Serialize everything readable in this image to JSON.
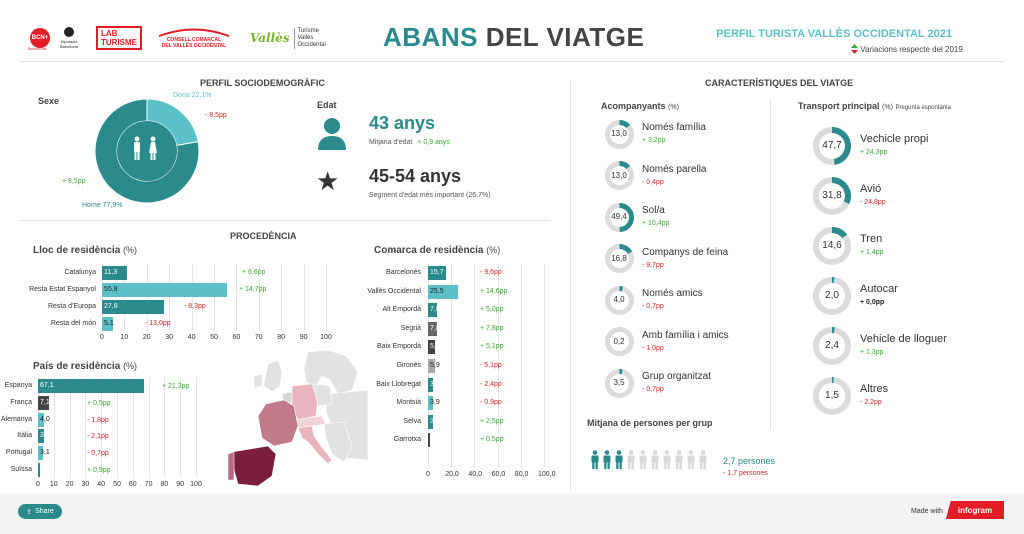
{
  "header": {
    "logo_bcn": "BCN+",
    "logo_bcn_sub": "Barcelona",
    "logo_diputacio": "Diputació Barcelona",
    "logo_lab_1": "LAB",
    "logo_lab_2": "TURISME",
    "logo_consell_1": "CONSELL COMARCAL",
    "logo_consell_2": "DEL VALLÈS OCCIDENTAL",
    "logo_valles_script": "Vallès",
    "logo_valles_1": "Turisme",
    "logo_valles_2": "Vallès",
    "logo_valles_3": "Occidental",
    "title_part1": "ABANS",
    "title_part2": "DEL VIATGE",
    "perfil": "PERFIL TURISTA VALLÈS OCCIDENTAL 2021",
    "variacions": "Variacions respecte del 2019"
  },
  "socio": {
    "title": "PERFIL SOCIODEMOGRÀFIC",
    "sexe_label": "Sexe",
    "dona_label": "Dona 22,1%",
    "dona_delta": "- 8,5pp",
    "home_label": "Home 77,9%",
    "home_delta": "+ 8,5pp",
    "dona_value": 22.1,
    "home_value": 77.9,
    "edat_label": "Edat",
    "edat_value": "43 anys",
    "edat_desc": "Mitjana d'edat",
    "edat_delta": "+ 0,9 anys",
    "segment_value": "45-54 anys",
    "segment_desc": "Segment d'edat més important (26,7%)"
  },
  "procedencia": {
    "title": "PROCEDÈNCIA",
    "lloc": {
      "title": "Lloc de residència",
      "unit": "(%)",
      "rows": [
        {
          "label": "Catalunya",
          "value": 11.3,
          "value_text": "11,3",
          "delta": "+ 6,6pp",
          "dir": "g",
          "color": "#2a8a8c"
        },
        {
          "label": "Resta Estat Espanyol",
          "value": 55.8,
          "value_text": "55,8",
          "delta": "+ 14,7pp",
          "dir": "g",
          "color": "#5bc0c8"
        },
        {
          "label": "Resta d'Europa",
          "value": 27.8,
          "value_text": "27,8",
          "delta": "- 8,3pp",
          "dir": "r",
          "color": "#2a8a8c"
        },
        {
          "label": "Resta del món",
          "value": 5.1,
          "value_text": "5,1",
          "delta": "- 13,0pp",
          "dir": "r",
          "color": "#5bc0c8"
        }
      ],
      "ticks": [
        "0",
        "10",
        "20",
        "30",
        "40",
        "50",
        "60",
        "70",
        "80",
        "90",
        "100"
      ]
    },
    "pais": {
      "title": "País de residència",
      "unit": "(%)",
      "rows": [
        {
          "label": "Espanya",
          "value": 67.1,
          "value_text": "67,1",
          "delta": "+ 21,3pp",
          "dir": "g",
          "color": "#2a8a8c"
        },
        {
          "label": "França",
          "value": 7.1,
          "value_text": "7,1",
          "delta": "+ 0,5pp",
          "dir": "g",
          "color": "#444444"
        },
        {
          "label": "Alemanya",
          "value": 4.0,
          "value_text": "4,0",
          "delta": "- 1,8pp",
          "dir": "r",
          "color": "#5bc0c8"
        },
        {
          "label": "Itàlia",
          "value": 3.5,
          "value_text": "3,5",
          "delta": "- 2,1pp",
          "dir": "r",
          "color": "#2a8a8c"
        },
        {
          "label": "Portugal",
          "value": 3.1,
          "value_text": "3,1",
          "delta": "- 0,7pp",
          "dir": "r",
          "color": "#5bc0c8"
        },
        {
          "label": "Suïssa",
          "value": 1.5,
          "value_text": "1,5",
          "delta": "+ 0,9pp",
          "dir": "g",
          "color": "#2a8a8c"
        }
      ],
      "ticks": [
        "0",
        "10",
        "20",
        "30",
        "40",
        "50",
        "60",
        "70",
        "80",
        "90",
        "100"
      ]
    },
    "comarca": {
      "title": "Comarca de residència",
      "unit": "(%)",
      "rows": [
        {
          "label": "Barcelonès",
          "value": 15.7,
          "value_text": "15,7",
          "delta": "- 9,6pp",
          "dir": "r",
          "color": "#2a8a8c"
        },
        {
          "label": "Vallès Occidental",
          "value": 25.5,
          "value_text": "25,5",
          "delta": "+ 14,6pp",
          "dir": "g",
          "color": "#5bc0c8"
        },
        {
          "label": "Alt Empordà",
          "value": 7.8,
          "value_text": "7,8",
          "delta": "+ 5,0pp",
          "dir": "g",
          "color": "#2a8a8c"
        },
        {
          "label": "Segrià",
          "value": 7.8,
          "value_text": "7,8",
          "delta": "+ 7,8pp",
          "dir": "g",
          "color": "#666666"
        },
        {
          "label": "Baix Empordà",
          "value": 5.9,
          "value_text": "5,9",
          "delta": "+ 5,1pp",
          "dir": "g",
          "color": "#444444"
        },
        {
          "label": "Gironès",
          "value": 5.9,
          "value_text": "5,9",
          "delta": "- 5,1pp",
          "dir": "r",
          "color": "#aaaaaa"
        },
        {
          "label": "Baix Llobregat",
          "value": 3.9,
          "value_text": "3,9",
          "delta": "- 2,4pp",
          "dir": "r",
          "color": "#2a8a8c"
        },
        {
          "label": "Montsià",
          "value": 3.9,
          "value_text": "3,9",
          "delta": "- 0,9pp",
          "dir": "r",
          "color": "#5bc0c8"
        },
        {
          "label": "Selva",
          "value": 3.9,
          "value_text": "3,9",
          "delta": "+ 2,5pp",
          "dir": "g",
          "color": "#2a8a8c"
        },
        {
          "label": "Garrotxa",
          "value": 2.0,
          "value_text": "2",
          "delta": "+ 0,5pp",
          "dir": "g",
          "color": "#444444"
        }
      ],
      "ticks": [
        "0",
        "20,0",
        "40,0",
        "60,0",
        "80,0",
        "100,0"
      ]
    }
  },
  "viatge": {
    "title": "CARACTERÍSTIQUES DEL VIATGE",
    "acomp": {
      "title": "Acompanyants",
      "unit": "(%)",
      "items": [
        {
          "label": "Només família",
          "value": 13.0,
          "value_text": "13,0",
          "delta": "+ 3,2pp",
          "dir": "g"
        },
        {
          "label": "Només parella",
          "value": 13.0,
          "value_text": "13,0",
          "delta": "- 0,4pp",
          "dir": "r"
        },
        {
          "label": "Sol/a",
          "value": 49.4,
          "value_text": "49,4",
          "delta": "+ 10,4pp",
          "dir": "g"
        },
        {
          "label": "Companys de feina",
          "value": 16.8,
          "value_text": "16,8",
          "delta": "- 9,7pp",
          "dir": "r"
        },
        {
          "label": "Només amics",
          "value": 4.0,
          "value_text": "4,0",
          "delta": "- 0,7pp",
          "dir": "r"
        },
        {
          "label": "Amb família i amics",
          "value": 0.2,
          "value_text": "0,2",
          "delta": "- 1,0pp",
          "dir": "r"
        },
        {
          "label": "Grup organitzat",
          "value": 3.5,
          "value_text": "3,5",
          "delta": "- 0,7pp",
          "dir": "r"
        }
      ]
    },
    "transport": {
      "title": "Transport principal",
      "unit": "(%)",
      "note": "Pregunta espontània",
      "items": [
        {
          "label": "Vechicle propi",
          "value": 47.7,
          "value_text": "47,7",
          "delta": "+ 24,3pp",
          "dir": "g"
        },
        {
          "label": "Avió",
          "value": 31.8,
          "value_text": "31,8",
          "delta": "- 24,8pp",
          "dir": "r"
        },
        {
          "label": "Tren",
          "value": 14.6,
          "value_text": "14,6",
          "delta": "+ 1,4pp",
          "dir": "g"
        },
        {
          "label": "Autocar",
          "value": 2.0,
          "value_text": "2,0",
          "delta": "+ 0,0pp",
          "dir": "k"
        },
        {
          "label": "Vehicle de lloguer",
          "value": 2.4,
          "value_text": "2,4",
          "delta": "+ 1,3pp",
          "dir": "g"
        },
        {
          "label": "Altres",
          "value": 1.5,
          "value_text": "1,5",
          "delta": "- 2,2pp",
          "dir": "r"
        }
      ]
    },
    "mitjana": {
      "title": "Mitjana de persones per grup",
      "value": "2,7 persones",
      "delta": "- 1,7 persones",
      "count": 2.7,
      "total": 10
    }
  },
  "footer": {
    "share": "Share",
    "made_with": "Made with",
    "brand": "infogram"
  },
  "colors": {
    "teal_dark": "#2a8a8c",
    "teal_light": "#5bc0c8",
    "green": "#3aaa35",
    "red": "#d9252b"
  }
}
